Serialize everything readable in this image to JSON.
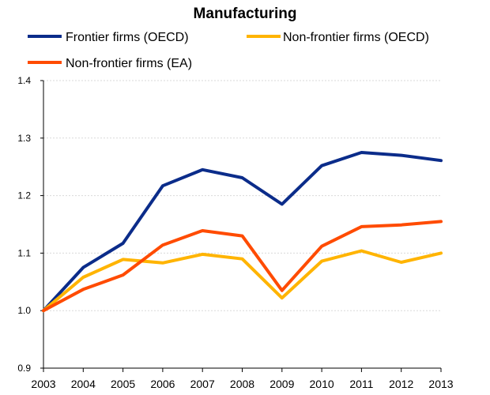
{
  "chart_data": {
    "type": "line",
    "title": "Manufacturing",
    "xlabel": "",
    "ylabel": "",
    "x": [
      "2003",
      "2004",
      "2005",
      "2006",
      "2007",
      "2008",
      "2009",
      "2010",
      "2011",
      "2012",
      "2013"
    ],
    "ylim": [
      0.9,
      1.4
    ],
    "yticks": [
      "0.9",
      "1.0",
      "1.1",
      "1.2",
      "1.3",
      "1.4"
    ],
    "grid": true,
    "legend_position": "top",
    "series": [
      {
        "name": "Frontier firms (OECD)",
        "color": "#0b2c8a",
        "values": [
          1.0,
          1.075,
          1.117,
          1.217,
          1.245,
          1.231,
          1.185,
          1.252,
          1.275,
          1.27,
          1.261
        ]
      },
      {
        "name": "Non-frontier firms (OECD)",
        "color": "#ffb400",
        "values": [
          1.0,
          1.058,
          1.089,
          1.083,
          1.098,
          1.09,
          1.022,
          1.086,
          1.104,
          1.084,
          1.1
        ]
      },
      {
        "name": "Non-frontier firms (EA)",
        "color": "#ff4b00",
        "values": [
          1.0,
          1.037,
          1.062,
          1.114,
          1.139,
          1.13,
          1.035,
          1.112,
          1.146,
          1.149,
          1.155
        ]
      }
    ]
  }
}
